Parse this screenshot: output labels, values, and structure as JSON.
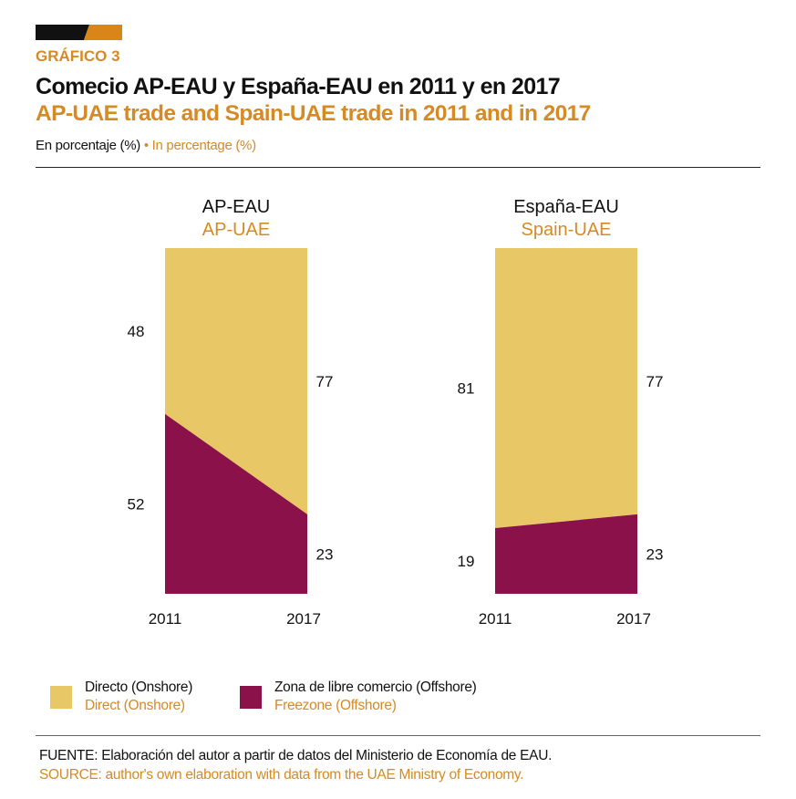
{
  "header": {
    "kicker": "GRÁFICO 3",
    "title_es": "Comecio AP-EAU y España-EAU en 2011 y en 2017",
    "title_en": "AP-UAE trade and Spain-UAE trade in 2011 and in 2017",
    "unit_es": "En porcentaje (%)",
    "unit_sep": " • ",
    "unit_en": "In percentage (%)"
  },
  "colors": {
    "direct": "#E8C766",
    "freezone": "#8A1149",
    "accent": "#D58A25",
    "bar_black": "#111111"
  },
  "chart_data": [
    {
      "type": "area",
      "title_es": "AP-EAU",
      "title_en": "AP-UAE",
      "categories": [
        "2011",
        "2017"
      ],
      "ylim": [
        0,
        100
      ],
      "series": [
        {
          "name": "Zona de libre comercio (Offshore)",
          "values": [
            52,
            23
          ]
        },
        {
          "name": "Directo (Onshore)",
          "values": [
            48,
            77
          ]
        }
      ]
    },
    {
      "type": "area",
      "title_es": "España-EAU",
      "title_en": "Spain-UAE",
      "categories": [
        "2011",
        "2017"
      ],
      "ylim": [
        0,
        100
      ],
      "series": [
        {
          "name": "Zona de libre comercio (Offshore)",
          "values": [
            19,
            23
          ]
        },
        {
          "name": "Directo (Onshore)",
          "values": [
            81,
            77
          ]
        }
      ]
    }
  ],
  "legend": [
    {
      "es": "Directo (Onshore)",
      "en": "Direct (Onshore)"
    },
    {
      "es": "Zona de libre comercio (Offshore)",
      "en": "Freezone (Offshore)"
    }
  ],
  "source": {
    "es": "FUENTE: Elaboración del autor a partir de datos del Ministerio de Economía de EAU.",
    "en": "SOURCE: author's own elaboration with data from the UAE Ministry of Economy."
  }
}
